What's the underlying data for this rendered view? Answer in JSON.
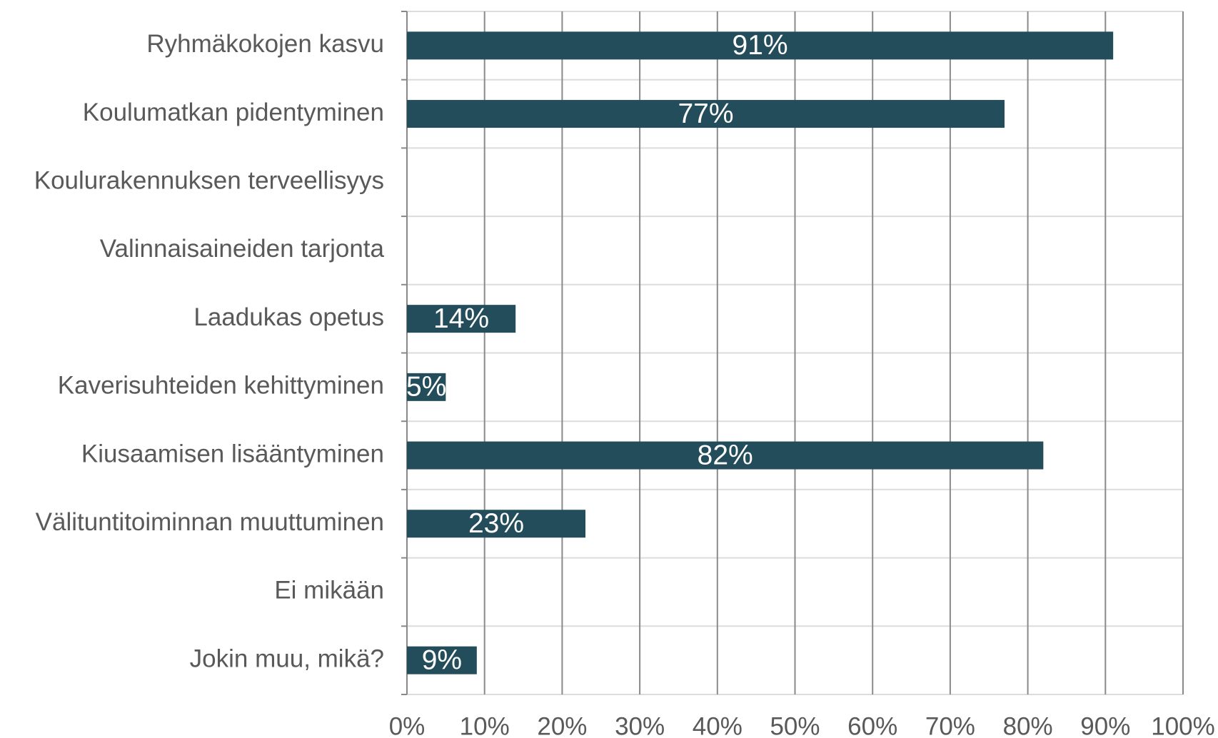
{
  "chart_data": {
    "type": "bar",
    "orientation": "horizontal",
    "categories": [
      "Ryhmäkokojen kasvu",
      "Koulumatkan pidentyminen",
      "Koulurakennuksen terveellisyys",
      "Valinnaisaineiden tarjonta",
      "Laadukas opetus",
      "Kaverisuhteiden kehittyminen",
      "Kiusaamisen lisääntyminen",
      "Välituntitoiminnan muuttuminen",
      "Ei mikään",
      "Jokin muu, mikä?"
    ],
    "values": [
      91,
      77,
      0,
      0,
      14,
      5,
      82,
      23,
      0,
      9
    ],
    "value_labels": [
      "91%",
      "77%",
      null,
      null,
      "14%",
      "5%",
      "82%",
      "23%",
      null,
      "9%"
    ],
    "color": "#234d5a",
    "xlim": [
      0,
      100
    ],
    "xticks": [
      {
        "value": 0,
        "label": "0%"
      },
      {
        "value": 10,
        "label": "10%"
      },
      {
        "value": 20,
        "label": "20%"
      },
      {
        "value": 30,
        "label": "30%"
      },
      {
        "value": 40,
        "label": "40%"
      },
      {
        "value": 50,
        "label": "50%"
      },
      {
        "value": 60,
        "label": "60%"
      },
      {
        "value": 70,
        "label": "70%"
      },
      {
        "value": 80,
        "label": "80%"
      },
      {
        "value": 90,
        "label": "90%"
      },
      {
        "value": 100,
        "label": "100%"
      }
    ],
    "grid": true
  }
}
